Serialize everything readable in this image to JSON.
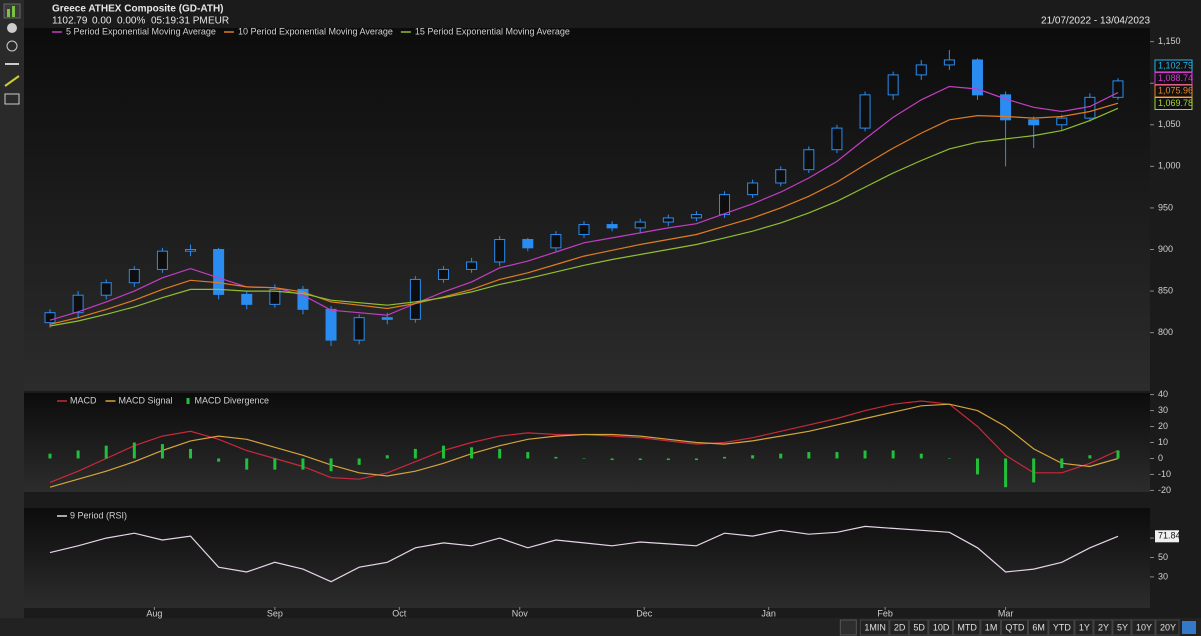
{
  "header": {
    "title": "Greece ATHEX Composite (GD-ATH)",
    "last": "1102.79",
    "change": "0.00",
    "change_pct": "0.00%",
    "time": "05:19:31 PM",
    "currency": "EUR",
    "date_range": "21/07/2022 - 13/04/2023"
  },
  "chart_data": [
    {
      "type": "candlestick",
      "color": "#2a8cf0",
      "x": [
        "2022-07-21",
        "2022-07-28",
        "2022-08-04",
        "2022-08-11",
        "2022-08-18",
        "2022-08-25",
        "2022-09-01",
        "2022-09-08",
        "2022-09-15",
        "2022-09-22",
        "2022-09-29",
        "2022-10-06",
        "2022-10-13",
        "2022-10-20",
        "2022-10-27",
        "2022-11-03",
        "2022-11-10",
        "2022-11-17",
        "2022-11-24",
        "2022-12-01",
        "2022-12-08",
        "2022-12-15",
        "2022-12-22",
        "2022-12-29",
        "2023-01-05",
        "2023-01-12",
        "2023-01-19",
        "2023-01-26",
        "2023-02-02",
        "2023-02-09",
        "2023-02-16",
        "2023-02-23",
        "2023-03-02",
        "2023-03-09",
        "2023-03-16",
        "2023-03-23",
        "2023-03-30",
        "2023-04-06",
        "2023-04-13"
      ],
      "xlim": [
        "2022-07-21",
        "2023-04-13"
      ],
      "open": [
        812,
        824,
        845,
        860,
        876,
        898,
        900,
        846,
        834,
        852,
        828,
        791,
        818,
        816,
        864,
        876,
        885,
        912,
        902,
        918,
        930,
        926,
        933,
        938,
        942,
        966,
        980,
        996,
        1020,
        1046,
        1086,
        1110,
        1122,
        1128,
        1086,
        1056,
        1050,
        1058,
        1083
      ],
      "high": [
        828,
        850,
        864,
        880,
        902,
        906,
        902,
        850,
        858,
        856,
        832,
        822,
        824,
        868,
        880,
        890,
        916,
        914,
        922,
        934,
        934,
        937,
        942,
        946,
        970,
        984,
        1000,
        1024,
        1050,
        1090,
        1114,
        1128,
        1140,
        1130,
        1090,
        1060,
        1062,
        1088,
        1106
      ],
      "low": [
        806,
        818,
        840,
        855,
        872,
        892,
        840,
        828,
        830,
        822,
        784,
        786,
        810,
        812,
        860,
        872,
        880,
        898,
        898,
        914,
        922,
        920,
        928,
        934,
        938,
        962,
        976,
        992,
        1016,
        1042,
        1080,
        1104,
        1116,
        1080,
        1000,
        1022,
        1044,
        1054,
        1080
      ],
      "close": [
        824,
        845,
        860,
        876,
        898,
        900,
        846,
        834,
        852,
        828,
        791,
        818,
        816,
        864,
        876,
        885,
        912,
        902,
        918,
        930,
        926,
        933,
        938,
        942,
        966,
        980,
        996,
        1020,
        1046,
        1086,
        1110,
        1122,
        1128,
        1086,
        1056,
        1050,
        1058,
        1083,
        1102.79
      ],
      "series": [
        {
          "name": "5 Period Exponential Moving Average",
          "color": "#c23ec2",
          "values": [
            815,
            825,
            837,
            850,
            866,
            877,
            866,
            855,
            854,
            845,
            827,
            824,
            821,
            835,
            849,
            861,
            878,
            886,
            897,
            908,
            914,
            920,
            926,
            931,
            943,
            955,
            969,
            986,
            1006,
            1033,
            1059,
            1080,
            1096,
            1093,
            1081,
            1071,
            1066,
            1072,
            1088.74
          ]
        },
        {
          "name": "10 Period Exponential Moving Average",
          "color": "#e07b20",
          "values": [
            810,
            818,
            828,
            839,
            852,
            863,
            860,
            855,
            854,
            849,
            837,
            833,
            829,
            835,
            843,
            852,
            864,
            872,
            882,
            892,
            899,
            906,
            912,
            918,
            928,
            938,
            950,
            964,
            981,
            1002,
            1022,
            1040,
            1056,
            1061,
            1060,
            1058,
            1060,
            1066,
            1075.96
          ]
        },
        {
          "name": "15 Period Exponential Moving Average",
          "color": "#8fbf2f",
          "values": [
            808,
            814,
            822,
            831,
            842,
            852,
            852,
            850,
            850,
            847,
            839,
            836,
            833,
            837,
            842,
            849,
            858,
            865,
            873,
            881,
            888,
            894,
            900,
            906,
            914,
            922,
            932,
            944,
            958,
            975,
            992,
            1007,
            1021,
            1029,
            1033,
            1037,
            1043,
            1055,
            1069.78
          ]
        }
      ],
      "last_value_labels": [
        {
          "value": 1102.79,
          "label": "1,102.79",
          "color": "#1fb8f0"
        },
        {
          "value": 1088.74,
          "label": "1,088.74",
          "color": "#d23ad2"
        },
        {
          "value": 1075.96,
          "label": "1,075.96",
          "color": "#e8862a"
        },
        {
          "value": 1069.78,
          "label": "1,069.78",
          "color": "#a6d632"
        }
      ],
      "ylim": [
        731,
        1164
      ],
      "yticks": [
        800,
        850,
        900,
        950,
        {
          "value": 1000,
          "label": "1,000"
        },
        {
          "value": 1050,
          "label": "1,050"
        },
        {
          "value": 1100,
          "label": "1,100"
        },
        {
          "value": 1150,
          "label": "1,150"
        }
      ]
    },
    {
      "type": "line",
      "series": [
        {
          "name": "MACD",
          "color": "#c8283c",
          "values": [
            -15,
            -8,
            0,
            8,
            14,
            17,
            12,
            5,
            0,
            -5,
            -12,
            -13,
            -9,
            -2,
            5,
            10,
            14,
            16,
            15,
            15,
            14,
            13,
            11,
            9,
            10,
            13,
            17,
            21,
            25,
            30,
            34,
            36,
            34,
            20,
            2,
            -9,
            -9,
            -3,
            5
          ]
        },
        {
          "name": "MACD Signal",
          "color": "#d6a43a",
          "values": [
            -18,
            -13,
            -8,
            -2,
            5,
            11,
            14,
            12,
            7,
            2,
            -4,
            -9,
            -11,
            -8,
            -3,
            3,
            8,
            12,
            14,
            15,
            15,
            14,
            12,
            10,
            9,
            11,
            14,
            17,
            21,
            25,
            29,
            33,
            34,
            30,
            20,
            6,
            -3,
            -5,
            0
          ]
        },
        {
          "name": "MACD Divergence",
          "color": "#22c03a",
          "type": "bar",
          "values": [
            3,
            5,
            8,
            10,
            9,
            6,
            -2,
            -7,
            -7,
            -7,
            -8,
            -4,
            2,
            6,
            8,
            7,
            6,
            4,
            1,
            0,
            -1,
            -1,
            -1,
            -1,
            1,
            2,
            3,
            4,
            4,
            5,
            5,
            3,
            0,
            -10,
            -18,
            -15,
            -6,
            2,
            5
          ]
        }
      ],
      "ylim": [
        -21,
        41
      ],
      "yticks": [
        40,
        30,
        20,
        10,
        0,
        -10,
        -20
      ]
    },
    {
      "type": "line",
      "series": [
        {
          "name": "9 Period (RSI)",
          "color": "#e8d4e8",
          "values": [
            55,
            62,
            70,
            75,
            68,
            72,
            40,
            35,
            45,
            38,
            25,
            40,
            45,
            60,
            65,
            62,
            70,
            60,
            68,
            65,
            62,
            66,
            64,
            62,
            75,
            72,
            78,
            74,
            76,
            82,
            80,
            78,
            76,
            60,
            35,
            38,
            45,
            60,
            71.84
          ]
        }
      ],
      "ylim": [
        0,
        101
      ],
      "yticks": [
        70,
        50,
        30
      ],
      "xticks": [
        {
          "value": "2022-08-16",
          "label": "Aug"
        },
        {
          "value": "2022-09-15",
          "label": "Sep"
        },
        {
          "value": "2022-10-16",
          "label": "Oct"
        },
        {
          "value": "2022-11-15",
          "label": "Nov"
        },
        {
          "value": "2022-12-16",
          "label": "Dec"
        },
        {
          "value": "2023-01-16",
          "label": "Jan"
        },
        {
          "value": "2023-02-14",
          "label": "Feb"
        },
        {
          "value": "2023-03-16",
          "label": "Mar"
        }
      ]
    }
  ],
  "range_buttons": [
    "1MIN",
    "2D",
    "5D",
    "10D",
    "MTD",
    "1M",
    "QTD",
    "6M",
    "YTD",
    "1Y",
    "2Y",
    "5Y",
    "10Y",
    "20Y"
  ]
}
